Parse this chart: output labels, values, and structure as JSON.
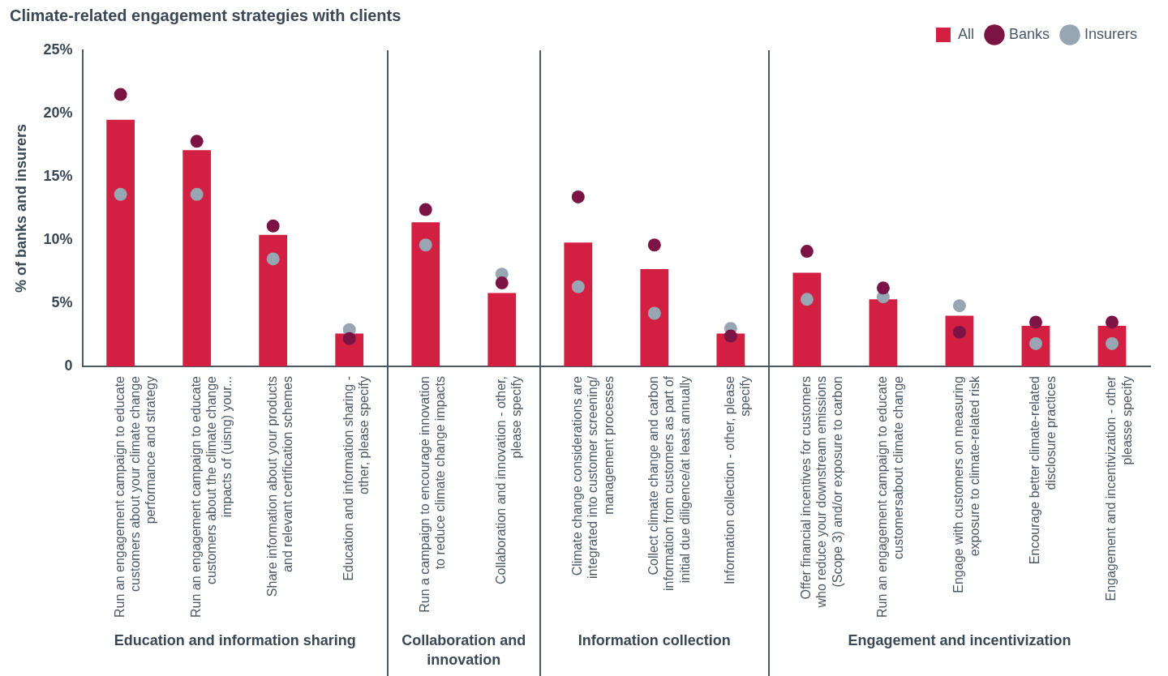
{
  "chart_data": {
    "type": "bar",
    "title": "Climate-related engagement strategies with clients",
    "ylabel": "% of banks and insurers",
    "categories": [
      "Run an engagement campaign to educate customers about your climate change performance and strategy",
      "Run an  engagement campaign to educate customers about the climate change impacts of (uisng) your...",
      "Share information about your products and relevant certification schemes",
      "Education and information sharing - other, please specify",
      "Run a campaign to encourage innovation to reduce climate change impacts",
      "Collaboration and innovation - other, please specify",
      "Climate change considerations are integrated into customer screening/ management processes",
      "Collect climate change and carbon information from customers as part of initial  due diligence/at least annually",
      "Information collection - other, please specify",
      "Offer financial incentives for customers who reduce your downstream emissions (Scope 3) and/or exposure  to carbon",
      "Run an engagement campaign to educate customersabout climate change",
      "Engage with customers on measuring exposure to climate-related risk",
      "Encourage better climate-related disclosure practices",
      "Engagement and incentivization - other pleasse specify"
    ],
    "series": [
      {
        "name": "All",
        "color": "#d31f42",
        "values": [
          19.5,
          17.1,
          10.4,
          2.6,
          11.4,
          5.8,
          9.8,
          7.7,
          2.6,
          7.4,
          5.3,
          4.0,
          3.2,
          3.2
        ]
      },
      {
        "name": "Banks",
        "type": "scatter",
        "color": "#7b1445",
        "values": [
          21.5,
          17.8,
          11.1,
          2.2,
          12.4,
          6.6,
          13.4,
          9.6,
          2.4,
          9.1,
          6.2,
          2.7,
          3.5,
          3.5
        ]
      },
      {
        "name": "Insurers",
        "type": "scatter",
        "color": "#97a6b2",
        "values": [
          13.6,
          13.6,
          8.5,
          2.9,
          9.6,
          7.3,
          6.3,
          4.2,
          3.0,
          5.3,
          5.5,
          4.8,
          1.8,
          1.8
        ]
      }
    ],
    "ylim": [
      0,
      25
    ],
    "yticks": [
      0,
      {
        "value": 5,
        "label": "5%"
      },
      {
        "value": 10,
        "label": "10%"
      },
      {
        "value": 15,
        "label": "15%"
      },
      {
        "value": 20,
        "label": "20%"
      },
      {
        "value": 25,
        "label": "25%"
      }
    ],
    "annotations": [
      "Education and information sharing",
      "Collaboration and innovation",
      "Information collection",
      "Engagement and incentivization"
    ],
    "grid": false,
    "legend": "top right",
    "marker": "circle"
  }
}
